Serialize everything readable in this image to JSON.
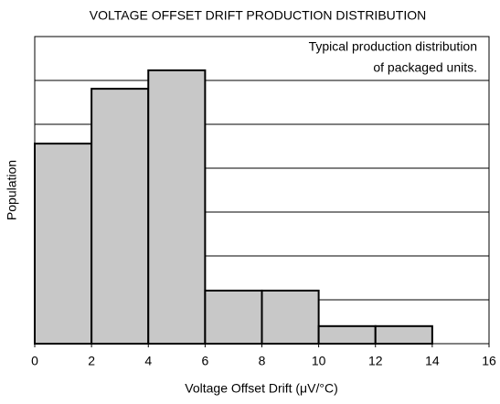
{
  "chart_data": {
    "type": "histogram",
    "title": "VOLTAGE OFFSET DRIFT PRODUCTION DISTRIBUTION",
    "xlabel": "Voltage Offset Drift (μV/°C)",
    "ylabel": "Population",
    "annotation": [
      "Typical production distribution",
      "of packaged units."
    ],
    "bins": [
      0,
      2,
      4,
      6,
      8,
      10,
      12,
      14
    ],
    "values": [
      4.56,
      5.81,
      6.23,
      1.21,
      1.21,
      0.4,
      0.4
    ],
    "color": "#c8c8c8",
    "xlim": [
      0,
      16
    ],
    "xticks": [
      0,
      2,
      4,
      6,
      8,
      10,
      12,
      14,
      16
    ],
    "ylim": [
      0,
      7
    ],
    "yticks": [
      0,
      1,
      2,
      3,
      4,
      5,
      6,
      7
    ],
    "ytick_labels": false,
    "grid": true
  }
}
